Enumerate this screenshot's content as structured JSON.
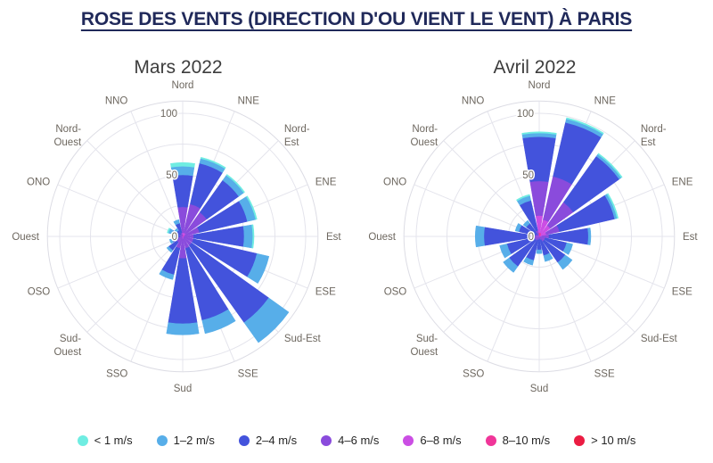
{
  "page": {
    "title": "ROSE DES VENTS (DIRECTION D'OU VIENT LE VENT) À PARIS"
  },
  "legend": {
    "items": [
      {
        "label": "< 1 m/s",
        "color": "#6fede2"
      },
      {
        "label": "1–2 m/s",
        "color": "#57aee9"
      },
      {
        "label": "2–4 m/s",
        "color": "#4353dc"
      },
      {
        "label": "4–6 m/s",
        "color": "#8a4bdc"
      },
      {
        "label": "6–8 m/s",
        "color": "#cb4ee4"
      },
      {
        "label": "8–10 m/s",
        "color": "#f03599"
      },
      {
        "label": "> 10 m/s",
        "color": "#eb1c42"
      }
    ]
  },
  "chart_data": [
    {
      "type": "windrose-barpolar",
      "title": "Mars 2022",
      "angular_categories": [
        "Nord",
        "NNE",
        "Nord-\nEst",
        "ENE",
        "Est",
        "ESE",
        "Sud-Est",
        "SSE",
        "Sud",
        "SSO",
        "Sud-\nOuest",
        "OSO",
        "Ouest",
        "ONO",
        "Nord-\nOuest",
        "NNO"
      ],
      "radial_ticks": [
        0,
        50,
        100
      ],
      "radial_max": 110,
      "grid_rings": [
        25,
        50,
        75,
        100
      ],
      "stack_order": "fastest-bin-at-center",
      "series": [
        {
          "name": "< 1 m/s",
          "values": [
            3,
            1,
            1,
            1,
            1,
            0,
            0,
            0,
            0,
            0,
            0,
            0,
            1,
            1,
            0,
            0
          ]
        },
        {
          "name": "1–2 m/s",
          "values": [
            7,
            4,
            5,
            7,
            7,
            10,
            20,
            11,
            9,
            4,
            2,
            2,
            2,
            3,
            2,
            3
          ]
        },
        {
          "name": "2–4 m/s",
          "values": [
            26,
            34,
            32,
            40,
            41,
            53,
            77,
            60,
            53,
            22,
            8,
            5,
            4,
            6,
            4,
            8
          ]
        },
        {
          "name": "4–6 m/s",
          "values": [
            21,
            24,
            21,
            12,
            8,
            8,
            8,
            9,
            16,
            9,
            5,
            3,
            2,
            3,
            2,
            3
          ]
        },
        {
          "name": "6–8 m/s",
          "values": [
            2,
            2,
            2,
            1,
            1,
            1,
            1,
            1,
            2,
            1,
            1,
            1,
            0,
            0,
            0,
            0
          ]
        },
        {
          "name": "8–10 m/s",
          "values": [
            1,
            1,
            1,
            1,
            0,
            0,
            0,
            0,
            0,
            0,
            0,
            0,
            0,
            0,
            0,
            0
          ]
        },
        {
          "name": "> 10 m/s",
          "values": [
            0,
            0,
            0,
            0,
            0,
            0,
            0,
            0,
            0,
            0,
            0,
            0,
            0,
            0,
            0,
            0
          ]
        }
      ]
    },
    {
      "type": "windrose-barpolar",
      "title": "Avril 2022",
      "angular_categories": [
        "Nord",
        "NNE",
        "Nord-\nEst",
        "ENE",
        "Est",
        "ESE",
        "Sud-Est",
        "SSE",
        "Sud",
        "SSO",
        "Sud-\nOuest",
        "OSO",
        "Ouest",
        "ONO",
        "Nord-\nOuest",
        "NNO"
      ],
      "radial_ticks": [
        0,
        50,
        100
      ],
      "radial_max": 110,
      "grid_rings": [
        25,
        50,
        75,
        100
      ],
      "stack_order": "fastest-bin-at-center",
      "series": [
        {
          "name": "< 1 m/s",
          "values": [
            1,
            1,
            1,
            1,
            0,
            0,
            0,
            0,
            0,
            0,
            0,
            0,
            0,
            0,
            0,
            1
          ]
        },
        {
          "name": "1–2 m/s",
          "values": [
            3,
            3,
            2,
            2,
            2,
            5,
            7,
            5,
            3,
            4,
            6,
            6,
            7,
            3,
            3,
            4
          ]
        },
        {
          "name": "2–4 m/s",
          "values": [
            36,
            45,
            46,
            46,
            32,
            18,
            21,
            13,
            9,
            17,
            26,
            23,
            37,
            14,
            11,
            25
          ]
        },
        {
          "name": "4–6 m/s",
          "values": [
            28,
            36,
            23,
            11,
            6,
            4,
            4,
            3,
            2,
            3,
            4,
            4,
            6,
            3,
            2,
            4
          ]
        },
        {
          "name": "6–8 m/s",
          "values": [
            14,
            11,
            9,
            5,
            2,
            1,
            1,
            0,
            0,
            0,
            0,
            0,
            2,
            0,
            0,
            1
          ]
        },
        {
          "name": "8–10 m/s",
          "values": [
            3,
            3,
            2,
            1,
            0,
            0,
            0,
            0,
            0,
            0,
            0,
            0,
            0,
            0,
            0,
            0
          ]
        },
        {
          "name": "> 10 m/s",
          "values": [
            0,
            0,
            0,
            0,
            0,
            0,
            0,
            0,
            0,
            0,
            0,
            0,
            0,
            0,
            0,
            0
          ]
        }
      ]
    }
  ]
}
